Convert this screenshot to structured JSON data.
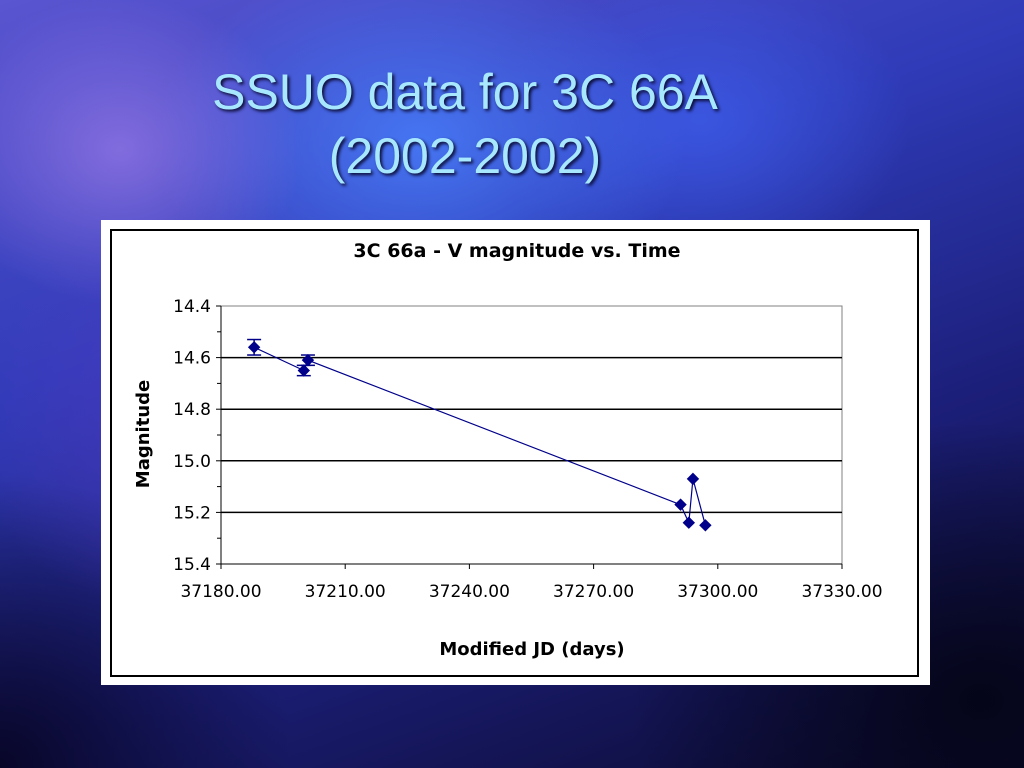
{
  "slide": {
    "title_line1": "SSUO data for 3C 66A",
    "title_line2": "(2002-2002)"
  },
  "colors": {
    "title": "#a8e8ff",
    "series": "#00008b",
    "background_dark": "#0b0a2e",
    "background_light": "#5a55d0"
  },
  "chart_data": {
    "type": "scatter",
    "title": "3C 66a - V magnitude vs. Time",
    "xlabel": "Modified JD (days)",
    "ylabel": "Magnitude",
    "xlim": [
      37180,
      37330
    ],
    "ylim": [
      14.4,
      15.4
    ],
    "y_inverted": true,
    "x_tick_values": [
      37180,
      37210,
      37240,
      37270,
      37300,
      37330
    ],
    "x_tick_labels": [
      "37180.00",
      "37210.00",
      "37240.00",
      "37270.00",
      "37300.00",
      "37330.00"
    ],
    "y_tick_values": [
      14.4,
      14.6,
      14.8,
      15.0,
      15.2,
      15.4
    ],
    "y_tick_labels": [
      "14.4",
      "14.6",
      "14.8",
      "15.0",
      "15.2",
      "15.4"
    ],
    "grid": "horizontal",
    "legend": "none",
    "connected": true,
    "series": [
      {
        "x": [
          37188.0,
          37200.0,
          37201.0,
          37291.0,
          37293.0,
          37294.0,
          37297.0
        ],
        "y": [
          14.56,
          14.65,
          14.61,
          15.17,
          15.24,
          15.07,
          15.25
        ],
        "y_err": [
          0.03,
          0.02,
          0.02,
          0.0,
          0.0,
          0.0,
          0.0
        ],
        "color": "#00008b"
      }
    ]
  }
}
